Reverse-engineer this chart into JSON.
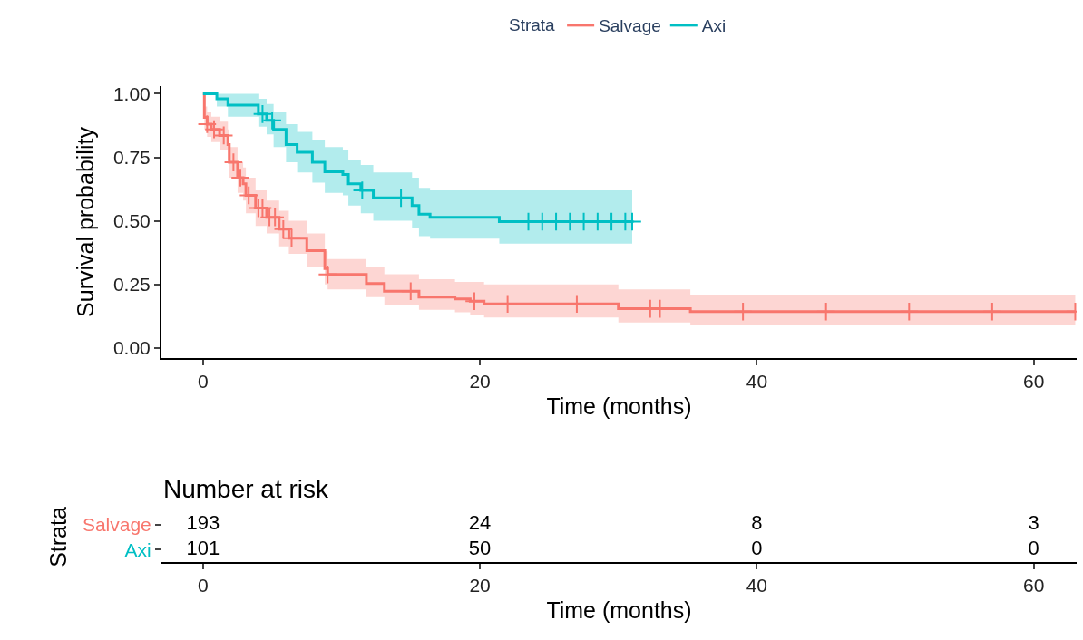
{
  "chart_data": [
    {
      "type": "step",
      "xlabel": "Time (months)",
      "ylabel": "Survival probability",
      "legend_title": "Strata",
      "legend": "top",
      "xlim": [
        -3,
        63.1
      ],
      "xticks": [
        0,
        20,
        40,
        60
      ],
      "ylim": [
        -0.04,
        1.03
      ],
      "yticks": [
        {
          "value": 0,
          "label": "0.00"
        },
        0.25,
        {
          "value": 0.5,
          "label": "0.50"
        },
        0.75,
        {
          "value": 1,
          "label": "1.00"
        }
      ],
      "series": [
        {
          "name": "Salvage",
          "color": "#f8766d",
          "type": "step",
          "marker": "none",
          "x": [
            0,
            0.1,
            0.3,
            0.6,
            1.2,
            1.8,
            1.9,
            2.5,
            2.9,
            3.1,
            3.8,
            4.6,
            5.5,
            6.2,
            7.5,
            8.8,
            9.0,
            11.8,
            13.1,
            15.6,
            18.2,
            19.3,
            20.3,
            30.0,
            35.2,
            63
          ],
          "values": [
            1.0,
            0.907,
            0.88,
            0.86,
            0.836,
            0.8,
            0.73,
            0.67,
            0.646,
            0.6,
            0.55,
            0.514,
            0.467,
            0.432,
            0.383,
            0.312,
            0.289,
            0.253,
            0.223,
            0.2,
            0.193,
            0.184,
            0.173,
            0.154,
            0.143,
            0.143
          ],
          "lower": [
            1.0,
            0.86,
            0.83,
            0.81,
            0.78,
            0.74,
            0.67,
            0.61,
            0.58,
            0.53,
            0.48,
            0.45,
            0.4,
            0.37,
            0.32,
            0.25,
            0.23,
            0.2,
            0.17,
            0.15,
            0.14,
            0.13,
            0.12,
            0.1,
            0.09,
            0.09
          ],
          "upper": [
            1.0,
            0.95,
            0.93,
            0.91,
            0.89,
            0.86,
            0.79,
            0.73,
            0.71,
            0.67,
            0.62,
            0.58,
            0.54,
            0.5,
            0.45,
            0.38,
            0.35,
            0.32,
            0.29,
            0.27,
            0.26,
            0.26,
            0.25,
            0.23,
            0.21,
            0.21
          ]
        },
        {
          "name": "Axi",
          "color": "#00bfc4",
          "type": "step",
          "marker": "none",
          "x": [
            0,
            1.0,
            1.8,
            4.0,
            4.6,
            5.1,
            6.0,
            6.8,
            7.9,
            8.8,
            10.1,
            10.5,
            11.4,
            12.3,
            15.1,
            15.6,
            16.4,
            21.4,
            31.0
          ],
          "values": [
            1.0,
            0.98,
            0.955,
            0.92,
            0.895,
            0.86,
            0.8,
            0.77,
            0.73,
            0.693,
            0.682,
            0.646,
            0.62,
            0.59,
            0.56,
            0.526,
            0.514,
            0.497,
            0.497
          ],
          "lower": [
            1.0,
            0.95,
            0.91,
            0.87,
            0.84,
            0.79,
            0.73,
            0.69,
            0.65,
            0.61,
            0.6,
            0.56,
            0.53,
            0.5,
            0.47,
            0.44,
            0.43,
            0.41,
            0.41
          ],
          "upper": [
            1.0,
            1.0,
            1.0,
            0.98,
            0.96,
            0.93,
            0.88,
            0.85,
            0.82,
            0.79,
            0.78,
            0.74,
            0.72,
            0.69,
            0.67,
            0.63,
            0.62,
            0.62,
            0.62
          ]
        },
        {
          "color": "#f8766d",
          "type": "scatter",
          "marker": "cross",
          "x": [
            0.3,
            0.8,
            1.5,
            2.2,
            2.7,
            3.3,
            4.0,
            4.3,
            4.8,
            5.2,
            5.8,
            6.4,
            9.0,
            15.0,
            19.6,
            22.0,
            27.0,
            32.3,
            33.0,
            39.0,
            45.0,
            51.0,
            57.0,
            63.0
          ],
          "values": [
            0.88,
            0.86,
            0.836,
            0.73,
            0.67,
            0.6,
            0.55,
            0.55,
            0.514,
            0.514,
            0.467,
            0.432,
            0.289,
            0.223,
            0.184,
            0.173,
            0.173,
            0.154,
            0.154,
            0.143,
            0.143,
            0.143,
            0.143,
            0.143
          ]
        },
        {
          "color": "#00bfc4",
          "type": "scatter",
          "marker": "cross",
          "x": [
            4.3,
            5.0,
            11.5,
            14.3,
            23.5,
            24.5,
            25.5,
            26.5,
            27.5,
            28.5,
            29.5,
            30.5,
            31.0
          ],
          "values": [
            0.92,
            0.895,
            0.62,
            0.59,
            0.497,
            0.497,
            0.497,
            0.497,
            0.497,
            0.497,
            0.497,
            0.497,
            0.497
          ]
        }
      ]
    },
    {
      "type": "heatmap",
      "title": "Number at risk",
      "xlabel": "Time (months)",
      "ylabel": "Strata",
      "categories": [
        "0",
        "20",
        "40",
        "60"
      ],
      "y_categories": [
        "Salvage",
        "Axi"
      ],
      "colors": [
        "#f8766d",
        "#00bfc4"
      ],
      "data_labels": true,
      "cells": [
        [
          193,
          24,
          8,
          3
        ],
        [
          101,
          50,
          0,
          0
        ]
      ]
    }
  ]
}
